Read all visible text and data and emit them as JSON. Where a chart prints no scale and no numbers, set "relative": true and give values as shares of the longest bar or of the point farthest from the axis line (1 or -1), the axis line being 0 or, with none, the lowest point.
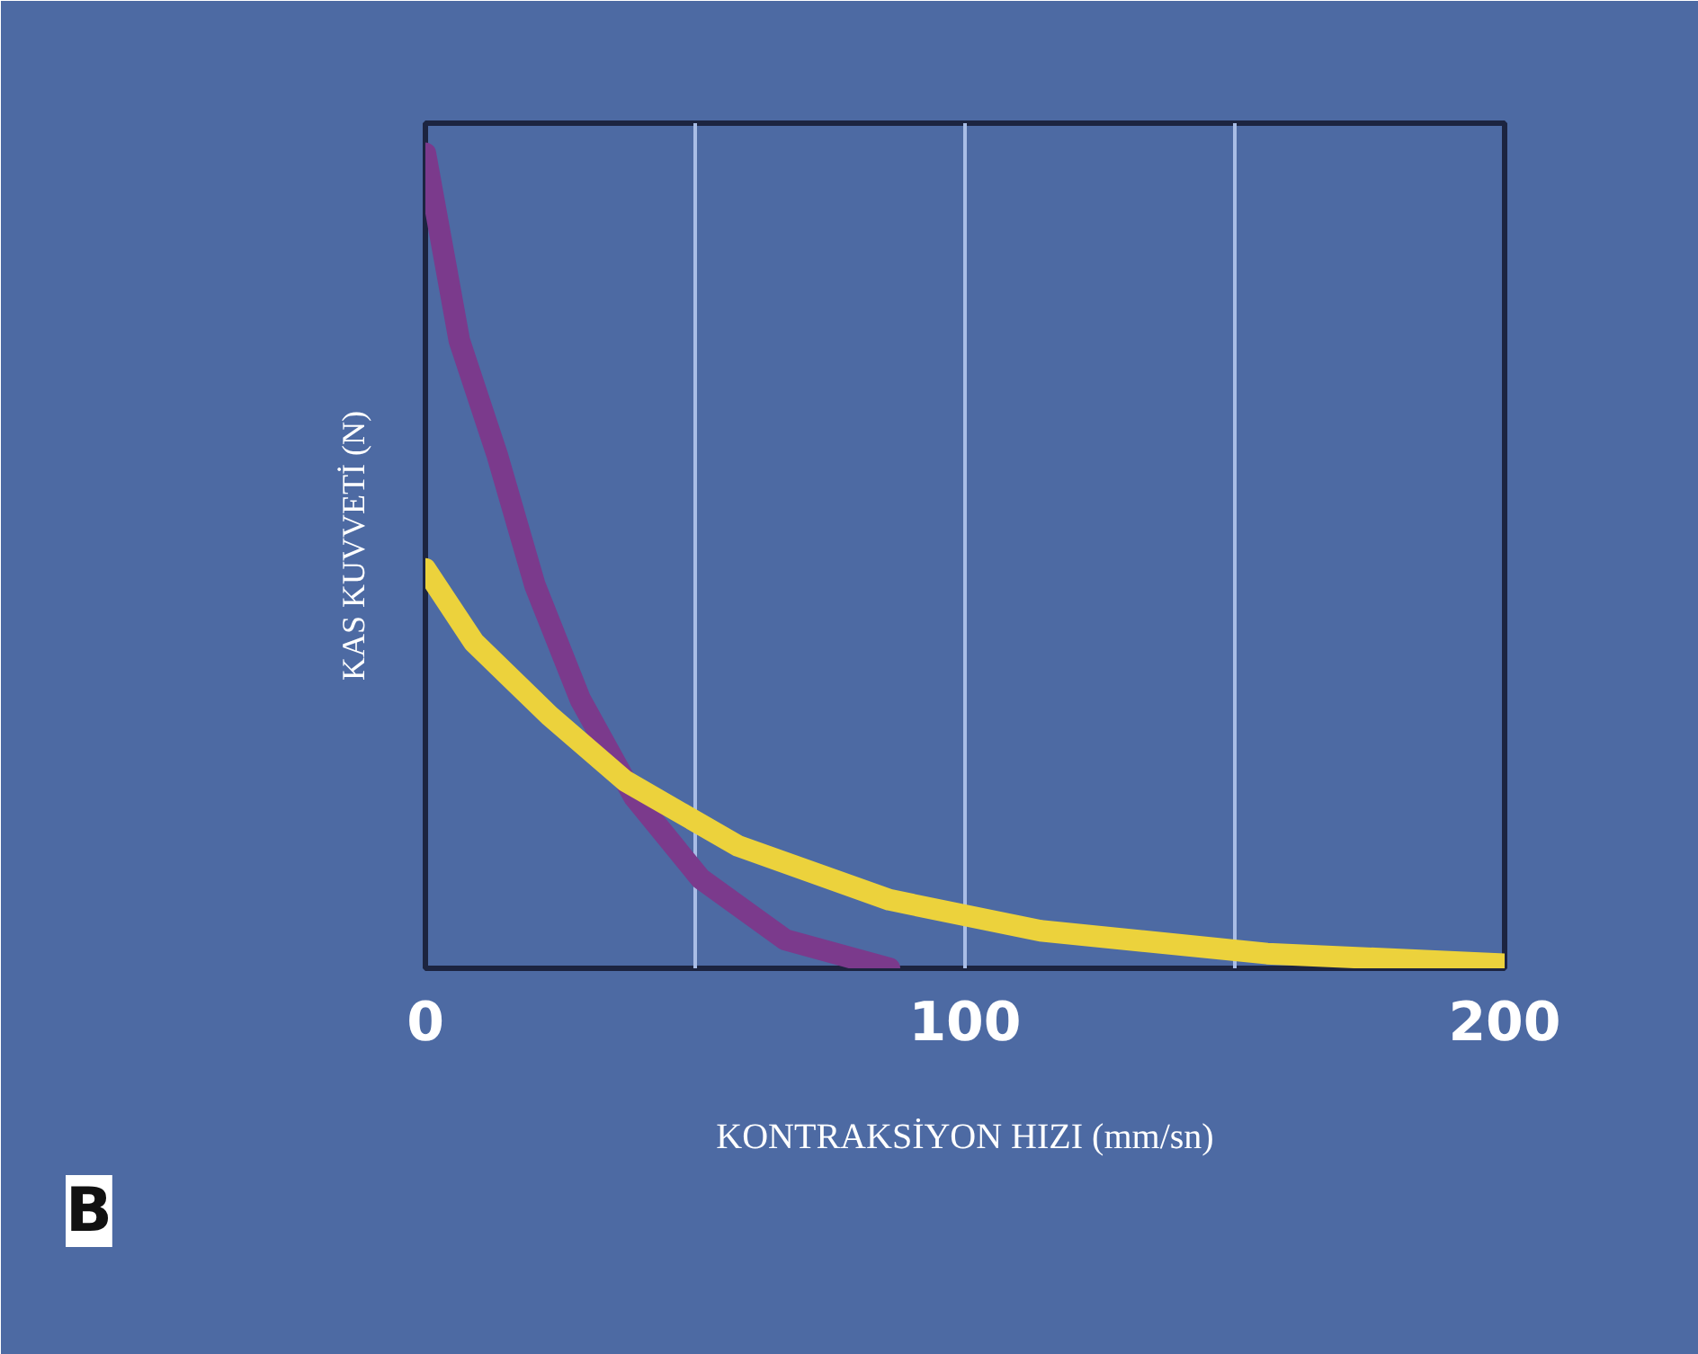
{
  "chart_data": {
    "type": "line",
    "ylabel": "KAS KUVVETİ (N)",
    "xlabel": "KONTRAKSİYON HIZI (mm/sn)",
    "annotations": [
      "B"
    ],
    "relative": true,
    "xlim": [
      0,
      200
    ],
    "xticks": [
      0,
      {
        "value": 50,
        "label": null
      },
      100,
      {
        "value": 150,
        "label": null
      },
      200
    ],
    "grid": "x",
    "line_style": "solid",
    "series": [
      {
        "color": "#7b3a8c",
        "x": [
          0,
          6.3,
          13.3,
          20.3,
          28.7,
          38.7,
          51,
          66.7,
          86
        ],
        "values": [
          1,
          0.77,
          0.63,
          0.47,
          0.33,
          0.21,
          0.11,
          0.035,
          0
        ]
      },
      {
        "color": "#ecd23c",
        "x": [
          0,
          9,
          23,
          37,
          58,
          86,
          114,
          156,
          200
        ],
        "values": [
          0.49,
          0.4,
          0.31,
          0.23,
          0.15,
          0.084,
          0.046,
          0.018,
          0.005
        ]
      }
    ]
  }
}
